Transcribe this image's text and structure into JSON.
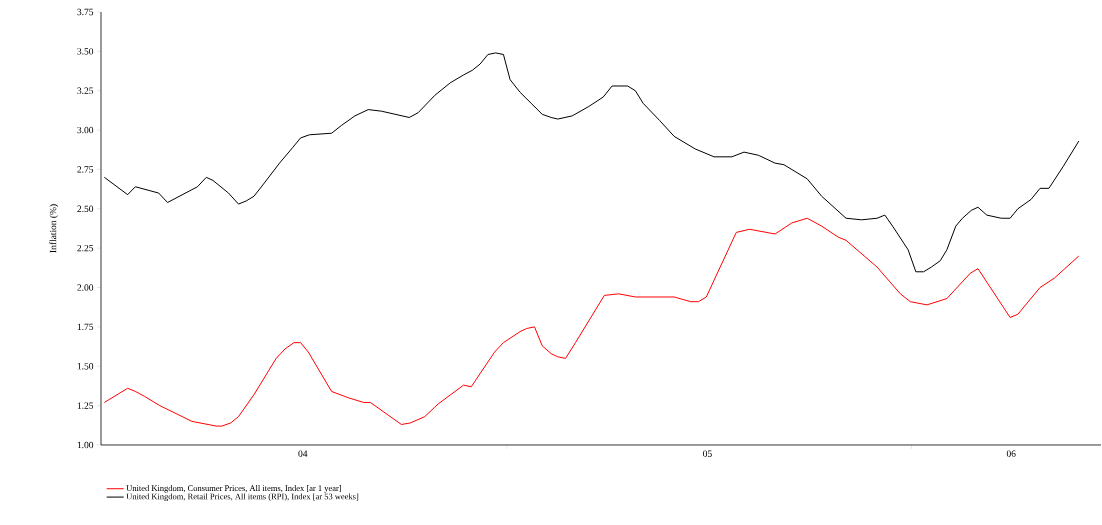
{
  "chart_data": {
    "type": "line",
    "ylabel": "Inflation (%)",
    "xlim": [
      "2004-01-01",
      "2006-06-21"
    ],
    "ylim": [
      1.0,
      3.75
    ],
    "xticks": [
      {
        "value": "2004-07-01",
        "label": "04"
      },
      {
        "value": "2005-01-01",
        "label": null
      },
      {
        "value": "2005-07-01",
        "label": "05"
      },
      {
        "value": "2006-01-01",
        "label": null
      },
      {
        "value": "2006-04-01",
        "label": "06"
      }
    ],
    "yticks": [
      {
        "value": 1,
        "label": "1.00"
      },
      {
        "value": 1.25,
        "label": "1.25"
      },
      {
        "value": 1.5,
        "label": "1.50"
      },
      {
        "value": 1.75,
        "label": "1.75"
      },
      {
        "value": 2,
        "label": "2.00"
      },
      {
        "value": 2.25,
        "label": "2.25"
      },
      {
        "value": 2.5,
        "label": "2.50"
      },
      {
        "value": 2.75,
        "label": "2.75"
      },
      {
        "value": 3,
        "label": "3.00"
      },
      {
        "value": 3.25,
        "label": "3.25"
      },
      {
        "value": 3.5,
        "label": "3.50"
      },
      {
        "value": 3.75,
        "label": "3.75"
      }
    ],
    "legend": "bottom left",
    "grid": false,
    "marker": "none",
    "line_style": "solid",
    "series": [
      {
        "name": "United Kingdom, Consumer Prices, All items, Index [ar 1 year]",
        "color": "#ff0000",
        "x": [
          "2004-01-04",
          "2004-01-25",
          "2004-02-01",
          "2004-02-09",
          "2004-02-23",
          "2004-03-23",
          "2004-04-14",
          "2004-04-19",
          "2004-04-27",
          "2004-05-04",
          "2004-05-18",
          "2004-06-07",
          "2004-06-15",
          "2004-06-23",
          "2004-06-29",
          "2004-07-06",
          "2004-07-27",
          "2004-08-11",
          "2004-08-25",
          "2004-08-31",
          "2004-09-14",
          "2004-09-28",
          "2004-10-06",
          "2004-10-19",
          "2004-10-28",
          "2004-10-31",
          "2004-11-23",
          "2004-11-30",
          "2004-12-21",
          "2004-12-29",
          "2005-01-13",
          "2005-01-19",
          "2005-01-26",
          "2005-02-02",
          "2005-02-10",
          "2005-02-16",
          "2005-02-23",
          "2005-03-04",
          "2005-03-30",
          "2005-04-12",
          "2005-04-27",
          "2005-06-01",
          "2005-06-16",
          "2005-06-23",
          "2005-06-30",
          "2005-07-27",
          "2005-08-08",
          "2005-08-31",
          "2005-09-15",
          "2005-09-29",
          "2005-10-12",
          "2005-10-27",
          "2005-11-03",
          "2005-12-01",
          "2005-12-22",
          "2005-12-31",
          "2006-01-15",
          "2006-02-02",
          "2006-02-23",
          "2006-03-02",
          "2006-03-31",
          "2006-04-07",
          "2006-04-27",
          "2006-05-10",
          "2006-06-01"
        ],
        "values": [
          1.27,
          1.36,
          1.34,
          1.31,
          1.25,
          1.15,
          1.12,
          1.12,
          1.14,
          1.18,
          1.32,
          1.55,
          1.61,
          1.65,
          1.65,
          1.59,
          1.34,
          1.3,
          1.27,
          1.27,
          1.2,
          1.13,
          1.14,
          1.18,
          1.24,
          1.26,
          1.38,
          1.37,
          1.59,
          1.65,
          1.72,
          1.74,
          1.75,
          1.63,
          1.58,
          1.56,
          1.55,
          1.65,
          1.95,
          1.96,
          1.94,
          1.94,
          1.91,
          1.91,
          1.94,
          2.35,
          2.37,
          2.34,
          2.41,
          2.44,
          2.39,
          2.32,
          2.3,
          2.13,
          1.96,
          1.91,
          1.89,
          1.93,
          2.09,
          2.12,
          1.81,
          1.83,
          2.0,
          2.06,
          2.2
        ]
      },
      {
        "name": "United Kingdom, Retail Prices, All items (RPI), Index [ar 53 weeks]",
        "color": "#000000",
        "x": [
          "2004-01-04",
          "2004-01-25",
          "2004-02-01",
          "2004-02-22",
          "2004-03-01",
          "2004-03-28",
          "2004-04-05",
          "2004-04-11",
          "2004-04-25",
          "2004-05-04",
          "2004-05-11",
          "2004-05-18",
          "2004-05-28",
          "2004-06-10",
          "2004-06-22",
          "2004-06-29",
          "2004-07-07",
          "2004-07-27",
          "2004-08-05",
          "2004-08-17",
          "2004-08-29",
          "2004-09-10",
          "2004-10-05",
          "2004-10-13",
          "2004-10-28",
          "2004-11-11",
          "2004-11-23",
          "2004-12-01",
          "2004-12-08",
          "2004-12-15",
          "2004-12-22",
          "2004-12-29",
          "2005-01-04",
          "2005-01-13",
          "2005-01-23",
          "2005-02-02",
          "2005-02-10",
          "2005-02-16",
          "2005-03-01",
          "2005-03-16",
          "2005-03-29",
          "2005-04-06",
          "2005-04-12",
          "2005-04-20",
          "2005-04-27",
          "2005-05-04",
          "2005-05-19",
          "2005-06-01",
          "2005-06-20",
          "2005-07-07",
          "2005-07-23",
          "2005-08-03",
          "2005-08-16",
          "2005-08-31",
          "2005-09-08",
          "2005-09-29",
          "2005-10-12",
          "2005-11-03",
          "2005-11-17",
          "2005-12-01",
          "2005-12-08",
          "2005-12-15",
          "2005-12-29",
          "2006-01-05",
          "2006-01-12",
          "2006-01-19",
          "2006-01-27",
          "2006-02-02",
          "2006-02-10",
          "2006-02-16",
          "2006-02-24",
          "2006-03-02",
          "2006-03-10",
          "2006-03-23",
          "2006-03-31",
          "2006-04-07",
          "2006-04-19",
          "2006-04-27",
          "2006-05-05",
          "2006-05-18",
          "2006-06-01"
        ],
        "values": [
          2.7,
          2.59,
          2.64,
          2.6,
          2.54,
          2.64,
          2.7,
          2.68,
          2.6,
          2.53,
          2.55,
          2.58,
          2.67,
          2.79,
          2.89,
          2.95,
          2.97,
          2.98,
          3.03,
          3.09,
          3.13,
          3.12,
          3.08,
          3.11,
          3.22,
          3.3,
          3.35,
          3.38,
          3.42,
          3.48,
          3.49,
          3.48,
          3.32,
          3.24,
          3.17,
          3.1,
          3.08,
          3.07,
          3.09,
          3.15,
          3.21,
          3.28,
          3.28,
          3.28,
          3.25,
          3.17,
          3.06,
          2.96,
          2.88,
          2.83,
          2.83,
          2.86,
          2.84,
          2.79,
          2.78,
          2.69,
          2.58,
          2.44,
          2.43,
          2.44,
          2.46,
          2.39,
          2.24,
          2.1,
          2.1,
          2.13,
          2.17,
          2.24,
          2.39,
          2.44,
          2.49,
          2.51,
          2.46,
          2.44,
          2.44,
          2.5,
          2.56,
          2.63,
          2.63,
          2.77,
          2.93
        ]
      }
    ]
  }
}
